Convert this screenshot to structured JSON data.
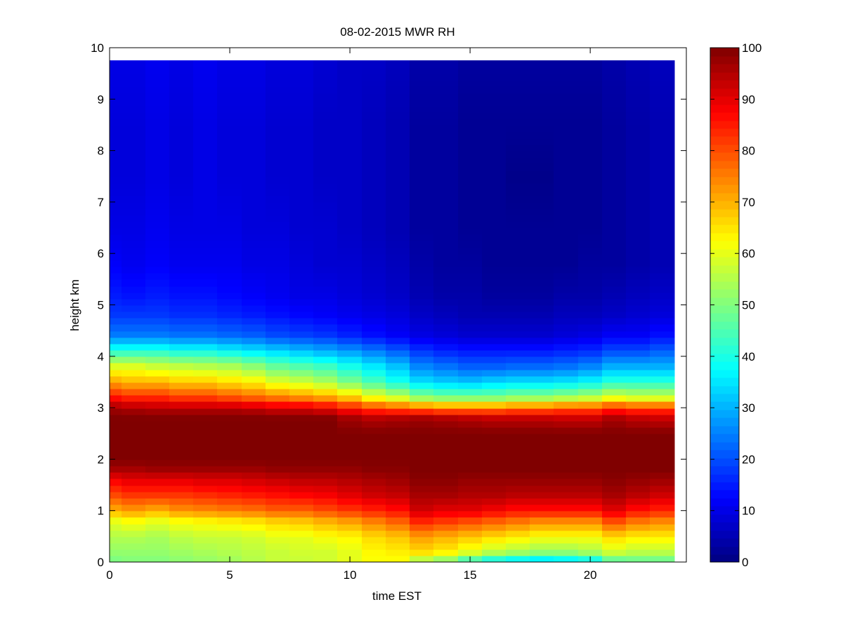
{
  "chart_data": {
    "type": "heatmap",
    "title": "08-02-2015 MWR RH",
    "xlabel": "time EST",
    "ylabel": "height km",
    "xlim": [
      0,
      24
    ],
    "ylim": [
      0,
      10
    ],
    "xticks": [
      0,
      5,
      10,
      15,
      20
    ],
    "yticks": [
      0,
      1,
      2,
      3,
      4,
      5,
      6,
      7,
      8,
      9,
      10
    ],
    "colormap": "jet",
    "colorbar": {
      "min": 0,
      "max": 100,
      "ticks": [
        0,
        10,
        20,
        30,
        40,
        50,
        60,
        70,
        80,
        90,
        100
      ]
    },
    "x_range": [
      0,
      23.5
    ],
    "y_range": [
      0,
      9.75
    ],
    "times": [
      0,
      1,
      2,
      3,
      4,
      5,
      6,
      7,
      8,
      9,
      10,
      11,
      12,
      13,
      14,
      15,
      16,
      17,
      18,
      19,
      20,
      21,
      22,
      23
    ],
    "height_levels": [
      0,
      0.2,
      0.5,
      0.8,
      1.0,
      1.3,
      1.6,
      1.8,
      2.0,
      2.5,
      2.8,
      3.0,
      3.2,
      3.5,
      3.8,
      4.1,
      4.4,
      4.8,
      5.2,
      5.8,
      6.5,
      7.5,
      8.5,
      9.75
    ],
    "rh_profiles_by_time": [
      [
        49,
        52,
        55,
        60,
        70,
        80,
        88,
        96,
        100,
        100,
        100,
        97,
        86,
        72,
        60,
        42,
        25,
        18,
        15,
        12,
        10,
        9,
        9,
        10
      ],
      [
        50,
        52,
        55,
        62,
        72,
        82,
        90,
        96,
        100,
        100,
        100,
        96,
        84,
        70,
        60,
        42,
        25,
        18,
        14,
        11,
        10,
        9,
        9,
        10
      ],
      [
        50,
        52,
        54,
        60,
        70,
        82,
        90,
        97,
        100,
        100,
        100,
        95,
        84,
        70,
        58,
        42,
        25,
        18,
        15,
        12,
        11,
        10,
        10,
        11
      ],
      [
        51,
        53,
        56,
        62,
        73,
        82,
        90,
        97,
        100,
        100,
        100,
        95,
        82,
        68,
        57,
        40,
        24,
        17,
        14,
        11,
        10,
        9,
        9,
        10
      ],
      [
        52,
        54,
        57,
        63,
        74,
        83,
        91,
        97,
        100,
        100,
        100,
        95,
        82,
        68,
        56,
        40,
        24,
        17,
        14,
        11,
        10,
        10,
        10,
        11
      ],
      [
        53,
        55,
        57,
        64,
        75,
        84,
        91,
        97,
        100,
        100,
        100,
        95,
        80,
        66,
        55,
        38,
        23,
        16,
        13,
        11,
        10,
        9,
        9,
        10
      ],
      [
        55,
        56,
        58,
        65,
        76,
        85,
        92,
        97,
        100,
        100,
        100,
        94,
        78,
        64,
        52,
        36,
        22,
        15,
        12,
        10,
        9,
        9,
        9,
        10
      ],
      [
        57,
        57,
        60,
        67,
        78,
        86,
        93,
        98,
        100,
        100,
        100,
        92,
        76,
        60,
        48,
        34,
        20,
        14,
        11,
        10,
        9,
        8,
        8,
        9
      ],
      [
        57,
        58,
        60,
        68,
        78,
        87,
        94,
        98,
        100,
        100,
        100,
        92,
        74,
        58,
        46,
        32,
        19,
        13,
        10,
        9,
        8,
        8,
        8,
        9
      ],
      [
        58,
        58,
        62,
        70,
        80,
        88,
        94,
        98,
        100,
        100,
        100,
        90,
        72,
        55,
        44,
        30,
        18,
        12,
        10,
        8,
        8,
        7,
        7,
        8
      ],
      [
        60,
        60,
        63,
        72,
        82,
        90,
        95,
        98,
        100,
        100,
        97,
        86,
        68,
        50,
        40,
        28,
        16,
        11,
        9,
        8,
        7,
        7,
        7,
        7
      ],
      [
        62,
        63,
        66,
        75,
        84,
        92,
        96,
        99,
        100,
        100,
        95,
        82,
        62,
        45,
        36,
        25,
        14,
        10,
        8,
        7,
        6,
        6,
        6,
        7
      ],
      [
        62,
        64,
        68,
        78,
        86,
        93,
        97,
        99,
        100,
        100,
        96,
        80,
        58,
        40,
        32,
        22,
        12,
        9,
        7,
        6,
        5,
        5,
        5,
        6
      ],
      [
        52,
        66,
        72,
        84,
        92,
        96,
        99,
        100,
        100,
        100,
        97,
        78,
        52,
        35,
        26,
        18,
        10,
        7,
        5,
        4,
        3,
        3,
        3,
        4
      ],
      [
        48,
        64,
        70,
        82,
        90,
        96,
        99,
        100,
        100,
        100,
        96,
        76,
        50,
        33,
        24,
        16,
        9,
        6,
        4,
        3,
        3,
        3,
        3,
        4
      ],
      [
        40,
        60,
        68,
        80,
        90,
        95,
        98,
        100,
        100,
        100,
        95,
        76,
        50,
        32,
        22,
        15,
        8,
        5,
        4,
        3,
        2,
        2,
        2,
        3
      ],
      [
        35,
        56,
        66,
        78,
        88,
        95,
        98,
        100,
        100,
        100,
        94,
        76,
        50,
        34,
        22,
        15,
        8,
        5,
        3,
        2,
        2,
        2,
        2,
        3
      ],
      [
        32,
        54,
        64,
        76,
        86,
        94,
        98,
        100,
        100,
        100,
        94,
        78,
        52,
        35,
        23,
        15,
        8,
        5,
        3,
        2,
        2,
        1,
        2,
        3
      ],
      [
        30,
        52,
        62,
        74,
        86,
        94,
        98,
        100,
        100,
        100,
        94,
        78,
        52,
        35,
        23,
        15,
        8,
        5,
        3,
        2,
        2,
        1,
        2,
        3
      ],
      [
        32,
        52,
        62,
        74,
        86,
        94,
        98,
        100,
        100,
        100,
        93,
        80,
        54,
        36,
        24,
        16,
        9,
        6,
        4,
        2,
        2,
        2,
        2,
        3
      ],
      [
        34,
        54,
        62,
        74,
        86,
        94,
        98,
        100,
        100,
        100,
        93,
        80,
        56,
        38,
        26,
        17,
        10,
        6,
        4,
        3,
        2,
        2,
        2,
        3
      ],
      [
        44,
        58,
        66,
        80,
        90,
        96,
        99,
        100,
        100,
        100,
        96,
        84,
        60,
        42,
        30,
        20,
        12,
        7,
        5,
        3,
        3,
        3,
        3,
        4
      ],
      [
        46,
        56,
        64,
        76,
        86,
        94,
        98,
        100,
        100,
        100,
        94,
        82,
        58,
        42,
        30,
        20,
        12,
        8,
        6,
        4,
        4,
        4,
        4,
        5
      ],
      [
        46,
        56,
        64,
        74,
        84,
        92,
        97,
        100,
        100,
        100,
        93,
        82,
        58,
        42,
        30,
        22,
        14,
        9,
        7,
        5,
        5,
        5,
        5,
        6
      ]
    ]
  }
}
